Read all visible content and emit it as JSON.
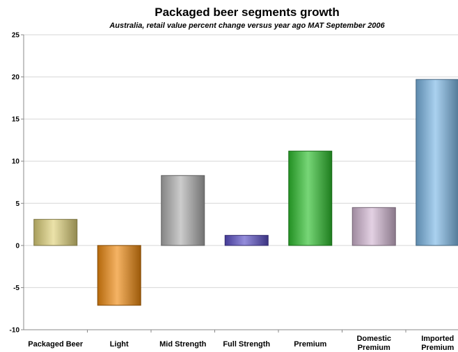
{
  "chart_data": {
    "type": "bar",
    "title": "Packaged beer segments growth",
    "subtitle": "Australia, retail value percent change versus year ago MAT September 2006",
    "categories": [
      "Packaged Beer",
      "Light",
      "Mid Strength",
      "Full Strength",
      "Premium",
      "Domestic Premium",
      "Imported Premium"
    ],
    "values": [
      3.1,
      -7.1,
      8.3,
      1.2,
      11.2,
      4.5,
      19.7
    ],
    "colors": [
      "#e0d27a",
      "#f08a10",
      "#b0b0b0",
      "#5a4fc8",
      "#2ec02e",
      "#d4b8d4",
      "#7cb8e6"
    ],
    "ylim": [
      -10,
      25
    ],
    "yticks": [
      25,
      20,
      15,
      10,
      5,
      0,
      -5,
      -10
    ],
    "grid": true,
    "xlabel": "",
    "ylabel": ""
  }
}
